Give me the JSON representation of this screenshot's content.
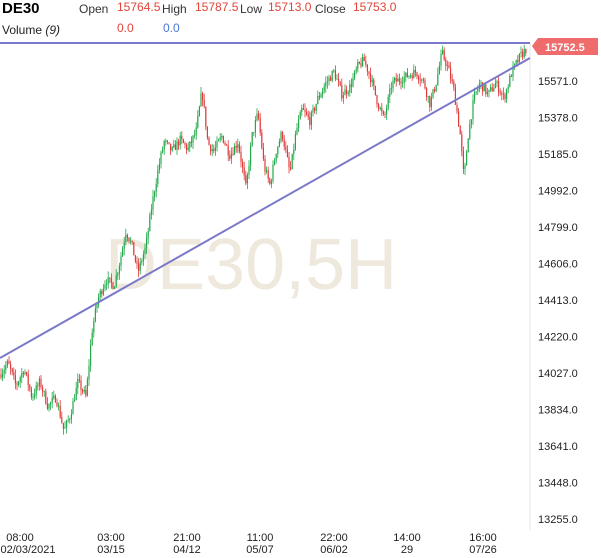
{
  "header": {
    "symbol": "DE30",
    "open_label": "Open",
    "open_value": "15764.5",
    "high_label": "High",
    "high_value": "15787.5",
    "low_label": "Low",
    "low_value": "15713.0",
    "close_label": "Close",
    "close_value": "15753.0",
    "volume_label": "Volume",
    "volume_param": "(9)",
    "volume_value_1": "0.0",
    "volume_value_2": "0.0"
  },
  "watermark": "DE30,5H",
  "current_price_label": "15752.5",
  "colors": {
    "up": "#22a84a",
    "down": "#e03a3a",
    "trendline": "#7a78c8",
    "price_tag": "#f06b6b",
    "watermark": "#efe9dd"
  },
  "chart_data": {
    "type": "candlestick",
    "y_ticks": [
      "15571.0",
      "15378.0",
      "15185.0",
      "14992.0",
      "14799.0",
      "14606.0",
      "14413.0",
      "14220.0",
      "14027.0",
      "13834.0",
      "13641.0",
      "13448.0",
      "13255.0"
    ],
    "ylim": [
      13230,
      15850
    ],
    "x_ticks": [
      {
        "time": "08:00",
        "date": "02/03/2021"
      },
      {
        "time": "03:00",
        "date": "03/15"
      },
      {
        "time": "21:00",
        "date": "04/12"
      },
      {
        "time": "11:00",
        "date": "05/07"
      },
      {
        "time": "22:00",
        "date": "06/02"
      },
      {
        "time": "14:00",
        "date": "29"
      },
      {
        "time": "16:00",
        "date": "07/26"
      }
    ],
    "price_path": [
      [
        0,
        14020
      ],
      [
        8,
        14080
      ],
      [
        16,
        13960
      ],
      [
        24,
        14050
      ],
      [
        32,
        13900
      ],
      [
        40,
        13980
      ],
      [
        48,
        13850
      ],
      [
        56,
        13900
      ],
      [
        64,
        13720
      ],
      [
        70,
        13800
      ],
      [
        78,
        13980
      ],
      [
        86,
        13900
      ],
      [
        92,
        14250
      ],
      [
        98,
        14420
      ],
      [
        106,
        14520
      ],
      [
        114,
        14490
      ],
      [
        120,
        14620
      ],
      [
        126,
        14780
      ],
      [
        132,
        14700
      ],
      [
        138,
        14560
      ],
      [
        146,
        14700
      ],
      [
        152,
        14920
      ],
      [
        158,
        15100
      ],
      [
        164,
        15250
      ],
      [
        172,
        15200
      ],
      [
        180,
        15260
      ],
      [
        188,
        15210
      ],
      [
        196,
        15300
      ],
      [
        202,
        15520
      ],
      [
        208,
        15240
      ],
      [
        214,
        15200
      ],
      [
        222,
        15280
      ],
      [
        230,
        15180
      ],
      [
        238,
        15250
      ],
      [
        246,
        15000
      ],
      [
        252,
        15280
      ],
      [
        258,
        15400
      ],
      [
        264,
        15120
      ],
      [
        270,
        15020
      ],
      [
        276,
        15200
      ],
      [
        282,
        15300
      ],
      [
        290,
        15080
      ],
      [
        296,
        15300
      ],
      [
        302,
        15420
      ],
      [
        310,
        15360
      ],
      [
        318,
        15480
      ],
      [
        326,
        15560
      ],
      [
        334,
        15620
      ],
      [
        342,
        15500
      ],
      [
        350,
        15540
      ],
      [
        358,
        15650
      ],
      [
        364,
        15680
      ],
      [
        370,
        15600
      ],
      [
        378,
        15450
      ],
      [
        384,
        15370
      ],
      [
        392,
        15560
      ],
      [
        400,
        15580
      ],
      [
        408,
        15600
      ],
      [
        416,
        15620
      ],
      [
        424,
        15560
      ],
      [
        430,
        15450
      ],
      [
        436,
        15560
      ],
      [
        442,
        15720
      ],
      [
        448,
        15640
      ],
      [
        454,
        15520
      ],
      [
        460,
        15300
      ],
      [
        464,
        15050
      ],
      [
        468,
        15280
      ],
      [
        474,
        15480
      ],
      [
        480,
        15560
      ],
      [
        488,
        15500
      ],
      [
        496,
        15560
      ],
      [
        504,
        15480
      ],
      [
        512,
        15620
      ],
      [
        520,
        15700
      ],
      [
        528,
        15752.5
      ]
    ]
  }
}
